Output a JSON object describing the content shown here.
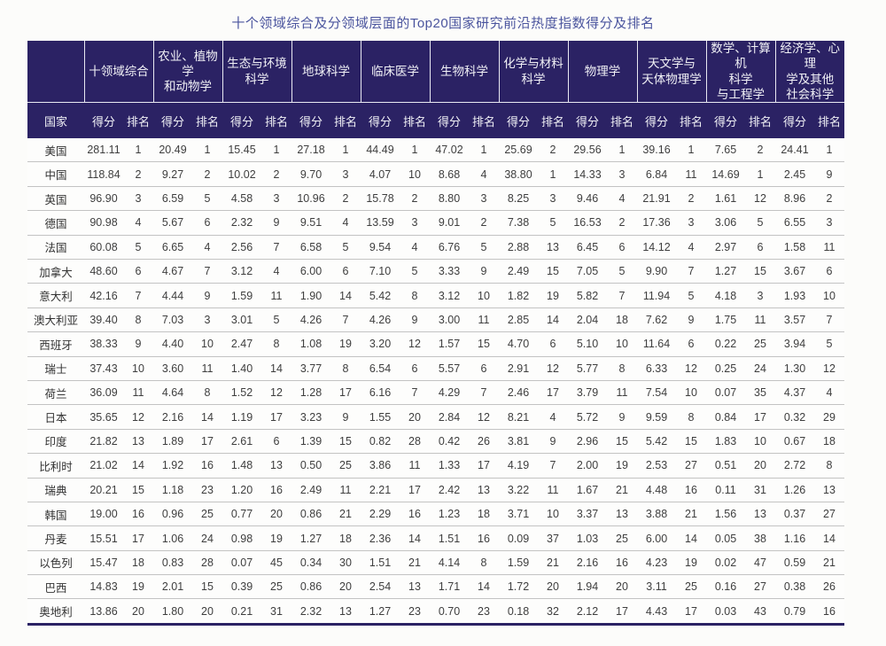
{
  "title": "十个领域综合及分领域层面的Top20国家研究前沿热度指数得分及排名",
  "colors": {
    "header_bg": "#2b2264",
    "header_line": "#e9e9f2",
    "title_text": "#4a549e",
    "row_divider": "#c3c3c3"
  },
  "table": {
    "country_header": "国家",
    "score_header": "得分",
    "rank_header": "排名",
    "fields": [
      "十领域综合",
      "农业、植物学\n和动物学",
      "生态与环境\n科学",
      "地球科学",
      "临床医学",
      "生物科学",
      "化学与材料\n科学",
      "物理学",
      "天文学与\n天体物理学",
      "数学、计算机\n科学\n与工程学",
      "经济学、心理\n学及其他\n社会科学"
    ],
    "rows": [
      {
        "country": "美国",
        "values": [
          "281.11",
          "1",
          "20.49",
          "1",
          "15.45",
          "1",
          "27.18",
          "1",
          "44.49",
          "1",
          "47.02",
          "1",
          "25.69",
          "2",
          "29.56",
          "1",
          "39.16",
          "1",
          "7.65",
          "2",
          "24.41",
          "1"
        ]
      },
      {
        "country": "中国",
        "values": [
          "118.84",
          "2",
          "9.27",
          "2",
          "10.02",
          "2",
          "9.70",
          "3",
          "4.07",
          "10",
          "8.68",
          "4",
          "38.80",
          "1",
          "14.33",
          "3",
          "6.84",
          "11",
          "14.69",
          "1",
          "2.45",
          "9"
        ]
      },
      {
        "country": "英国",
        "values": [
          "96.90",
          "3",
          "6.59",
          "5",
          "4.58",
          "3",
          "10.96",
          "2",
          "15.78",
          "2",
          "8.80",
          "3",
          "8.25",
          "3",
          "9.46",
          "4",
          "21.91",
          "2",
          "1.61",
          "12",
          "8.96",
          "2"
        ]
      },
      {
        "country": "德国",
        "values": [
          "90.98",
          "4",
          "5.67",
          "6",
          "2.32",
          "9",
          "9.51",
          "4",
          "13.59",
          "3",
          "9.01",
          "2",
          "7.38",
          "5",
          "16.53",
          "2",
          "17.36",
          "3",
          "3.06",
          "5",
          "6.55",
          "3"
        ]
      },
      {
        "country": "法国",
        "values": [
          "60.08",
          "5",
          "6.65",
          "4",
          "2.56",
          "7",
          "6.58",
          "5",
          "9.54",
          "4",
          "6.76",
          "5",
          "2.88",
          "13",
          "6.45",
          "6",
          "14.12",
          "4",
          "2.97",
          "6",
          "1.58",
          "11"
        ]
      },
      {
        "country": "加拿大",
        "values": [
          "48.60",
          "6",
          "4.67",
          "7",
          "3.12",
          "4",
          "6.00",
          "6",
          "7.10",
          "5",
          "3.33",
          "9",
          "2.49",
          "15",
          "7.05",
          "5",
          "9.90",
          "7",
          "1.27",
          "15",
          "3.67",
          "6"
        ]
      },
      {
        "country": "意大利",
        "values": [
          "42.16",
          "7",
          "4.44",
          "9",
          "1.59",
          "11",
          "1.90",
          "14",
          "5.42",
          "8",
          "3.12",
          "10",
          "1.82",
          "19",
          "5.82",
          "7",
          "11.94",
          "5",
          "4.18",
          "3",
          "1.93",
          "10"
        ]
      },
      {
        "country": "澳大利亚",
        "values": [
          "39.40",
          "8",
          "7.03",
          "3",
          "3.01",
          "5",
          "4.26",
          "7",
          "4.26",
          "9",
          "3.00",
          "11",
          "2.85",
          "14",
          "2.04",
          "18",
          "7.62",
          "9",
          "1.75",
          "11",
          "3.57",
          "7"
        ]
      },
      {
        "country": "西班牙",
        "values": [
          "38.33",
          "9",
          "4.40",
          "10",
          "2.47",
          "8",
          "1.08",
          "19",
          "3.20",
          "12",
          "1.57",
          "15",
          "4.70",
          "6",
          "5.10",
          "10",
          "11.64",
          "6",
          "0.22",
          "25",
          "3.94",
          "5"
        ]
      },
      {
        "country": "瑞士",
        "values": [
          "37.43",
          "10",
          "3.60",
          "11",
          "1.40",
          "14",
          "3.77",
          "8",
          "6.54",
          "6",
          "5.57",
          "6",
          "2.91",
          "12",
          "5.77",
          "8",
          "6.33",
          "12",
          "0.25",
          "24",
          "1.30",
          "12"
        ]
      },
      {
        "country": "荷兰",
        "values": [
          "36.09",
          "11",
          "4.64",
          "8",
          "1.52",
          "12",
          "1.28",
          "17",
          "6.16",
          "7",
          "4.29",
          "7",
          "2.46",
          "17",
          "3.79",
          "11",
          "7.54",
          "10",
          "0.07",
          "35",
          "4.37",
          "4"
        ]
      },
      {
        "country": "日本",
        "values": [
          "35.65",
          "12",
          "2.16",
          "14",
          "1.19",
          "17",
          "3.23",
          "9",
          "1.55",
          "20",
          "2.84",
          "12",
          "8.21",
          "4",
          "5.72",
          "9",
          "9.59",
          "8",
          "0.84",
          "17",
          "0.32",
          "29"
        ]
      },
      {
        "country": "印度",
        "values": [
          "21.82",
          "13",
          "1.89",
          "17",
          "2.61",
          "6",
          "1.39",
          "15",
          "0.82",
          "28",
          "0.42",
          "26",
          "3.81",
          "9",
          "2.96",
          "15",
          "5.42",
          "15",
          "1.83",
          "10",
          "0.67",
          "18"
        ]
      },
      {
        "country": "比利时",
        "values": [
          "21.02",
          "14",
          "1.92",
          "16",
          "1.48",
          "13",
          "0.50",
          "25",
          "3.86",
          "11",
          "1.33",
          "17",
          "4.19",
          "7",
          "2.00",
          "19",
          "2.53",
          "27",
          "0.51",
          "20",
          "2.72",
          "8"
        ]
      },
      {
        "country": "瑞典",
        "values": [
          "20.21",
          "15",
          "1.18",
          "23",
          "1.20",
          "16",
          "2.49",
          "11",
          "2.21",
          "17",
          "2.42",
          "13",
          "3.22",
          "11",
          "1.67",
          "21",
          "4.48",
          "16",
          "0.11",
          "31",
          "1.26",
          "13"
        ]
      },
      {
        "country": "韩国",
        "values": [
          "19.00",
          "16",
          "0.96",
          "25",
          "0.77",
          "20",
          "0.86",
          "21",
          "2.29",
          "16",
          "1.23",
          "18",
          "3.71",
          "10",
          "3.37",
          "13",
          "3.88",
          "21",
          "1.56",
          "13",
          "0.37",
          "27"
        ]
      },
      {
        "country": "丹麦",
        "values": [
          "15.51",
          "17",
          "1.06",
          "24",
          "0.98",
          "19",
          "1.27",
          "18",
          "2.36",
          "14",
          "1.51",
          "16",
          "0.09",
          "37",
          "1.03",
          "25",
          "6.00",
          "14",
          "0.05",
          "38",
          "1.16",
          "14"
        ]
      },
      {
        "country": "以色列",
        "values": [
          "15.47",
          "18",
          "0.83",
          "28",
          "0.07",
          "45",
          "0.34",
          "30",
          "1.51",
          "21",
          "4.14",
          "8",
          "1.59",
          "21",
          "2.16",
          "16",
          "4.23",
          "19",
          "0.02",
          "47",
          "0.59",
          "21"
        ]
      },
      {
        "country": "巴西",
        "values": [
          "14.83",
          "19",
          "2.01",
          "15",
          "0.39",
          "25",
          "0.86",
          "20",
          "2.54",
          "13",
          "1.71",
          "14",
          "1.72",
          "20",
          "1.94",
          "20",
          "3.11",
          "25",
          "0.16",
          "27",
          "0.38",
          "26"
        ]
      },
      {
        "country": "奥地利",
        "values": [
          "13.86",
          "20",
          "1.80",
          "20",
          "0.21",
          "31",
          "2.32",
          "13",
          "1.27",
          "23",
          "0.70",
          "23",
          "0.18",
          "32",
          "2.12",
          "17",
          "4.43",
          "17",
          "0.03",
          "43",
          "0.79",
          "16"
        ]
      }
    ]
  }
}
